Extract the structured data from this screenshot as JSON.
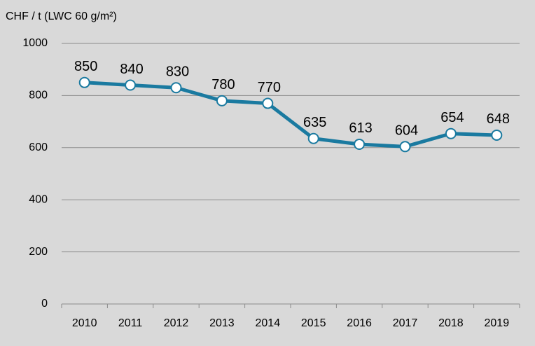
{
  "chart_data": {
    "type": "line",
    "y_label": "CHF / t (LWC 60 g/m²)",
    "categories": [
      "2010",
      "2011",
      "2012",
      "2013",
      "2014",
      "2015",
      "2016",
      "2017",
      "2018",
      "2019"
    ],
    "values": [
      850,
      840,
      830,
      780,
      770,
      635,
      613,
      604,
      654,
      648
    ],
    "color": "#1a7aa0",
    "ylim": [
      0,
      1000
    ],
    "yticks": [
      0,
      200,
      400,
      600,
      800,
      1000
    ],
    "grid": true
  }
}
